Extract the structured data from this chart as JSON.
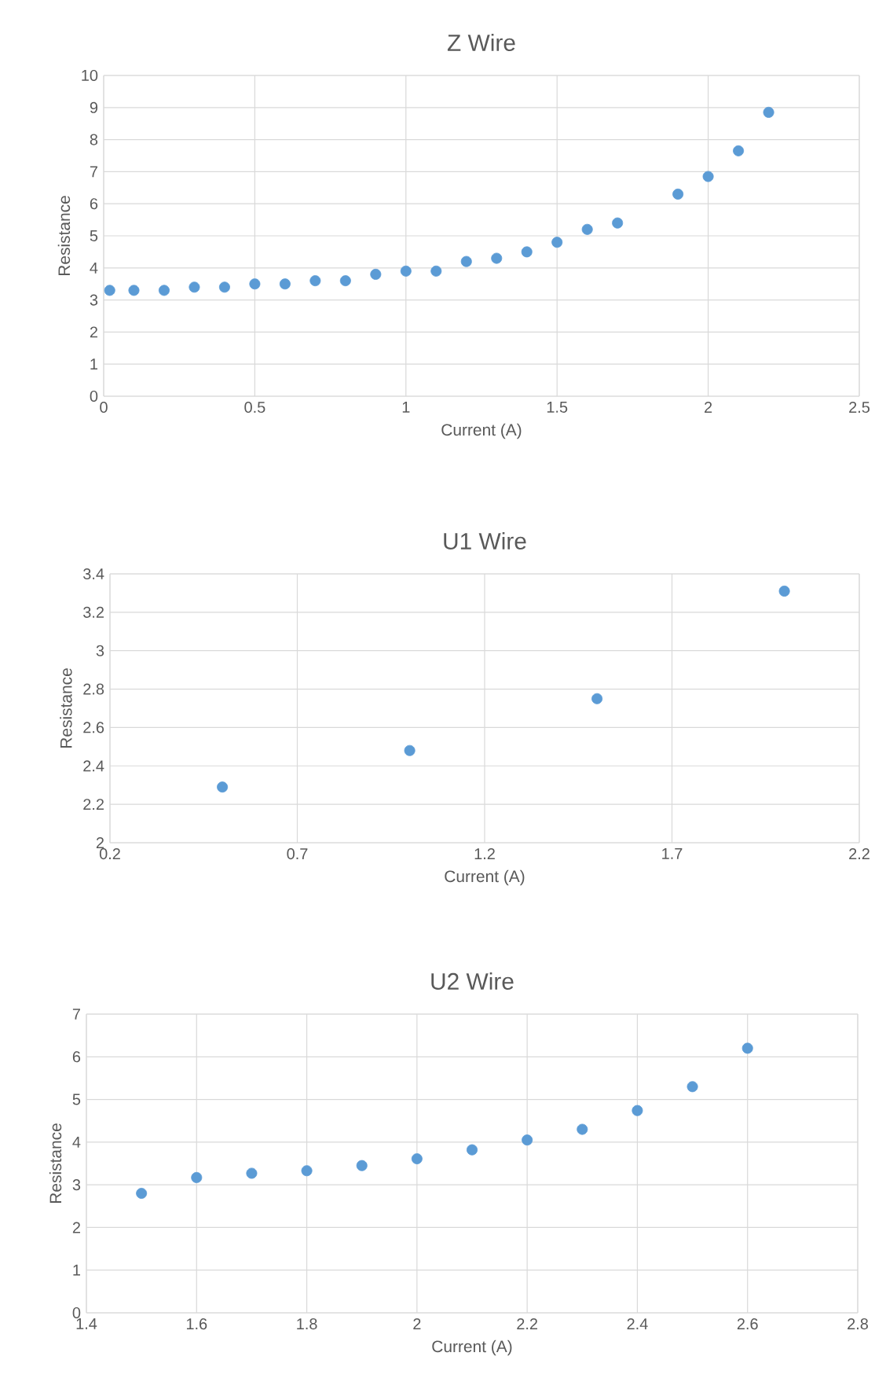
{
  "chart_data": [
    {
      "type": "scatter",
      "title": "Z Wire",
      "xlabel": "Current (A)",
      "ylabel": "Resistance",
      "color": "#5b9bd5",
      "marker": "circle",
      "grid": true,
      "x": [
        0.02,
        0.1,
        0.2,
        0.3,
        0.4,
        0.5,
        0.6,
        0.7,
        0.8,
        0.9,
        1.0,
        1.1,
        1.2,
        1.3,
        1.4,
        1.5,
        1.6,
        1.7,
        1.9,
        2.0,
        2.1,
        2.2
      ],
      "values": [
        3.3,
        3.3,
        3.3,
        3.4,
        3.4,
        3.5,
        3.5,
        3.6,
        3.6,
        3.8,
        3.9,
        3.9,
        4.2,
        4.3,
        4.5,
        4.8,
        5.2,
        5.4,
        6.3,
        6.85,
        7.65,
        8.85
      ],
      "xlim": [
        0,
        2.5
      ],
      "ylim": [
        0,
        10
      ],
      "xticks": [
        0,
        0.5,
        1,
        1.5,
        2,
        2.5
      ],
      "yticks": [
        0,
        1,
        2,
        3,
        4,
        5,
        6,
        7,
        8,
        9,
        10
      ]
    },
    {
      "type": "scatter",
      "title": "U1 Wire",
      "xlabel": "Current (A)",
      "ylabel": "Resistance",
      "color": "#5b9bd5",
      "marker": "circle",
      "grid": true,
      "x": [
        0.5,
        1.0,
        1.5,
        2.0
      ],
      "values": [
        2.29,
        2.48,
        2.75,
        3.31
      ],
      "xlim": [
        0.2,
        2.2
      ],
      "ylim": [
        2,
        3.4
      ],
      "xticks": [
        0.2,
        0.7,
        1.2,
        1.7,
        2.2
      ],
      "yticks": [
        2,
        2.2,
        2.4,
        2.6,
        2.8,
        3,
        3.2,
        3.4
      ]
    },
    {
      "type": "scatter",
      "title": "U2 Wire",
      "xlabel": "Current (A)",
      "ylabel": "Resistance",
      "color": "#5b9bd5",
      "marker": "circle",
      "grid": true,
      "x": [
        1.5,
        1.6,
        1.7,
        1.8,
        1.9,
        2.0,
        2.1,
        2.2,
        2.3,
        2.4,
        2.5,
        2.6
      ],
      "values": [
        2.8,
        3.17,
        3.27,
        3.33,
        3.45,
        3.61,
        3.82,
        4.05,
        4.3,
        4.74,
        5.3,
        6.2
      ],
      "xlim": [
        1.4,
        2.8
      ],
      "ylim": [
        0,
        7
      ],
      "xticks": [
        1.4,
        1.6,
        1.8,
        2,
        2.2,
        2.4,
        2.6,
        2.8
      ],
      "yticks": [
        0,
        1,
        2,
        3,
        4,
        5,
        6,
        7
      ]
    }
  ]
}
